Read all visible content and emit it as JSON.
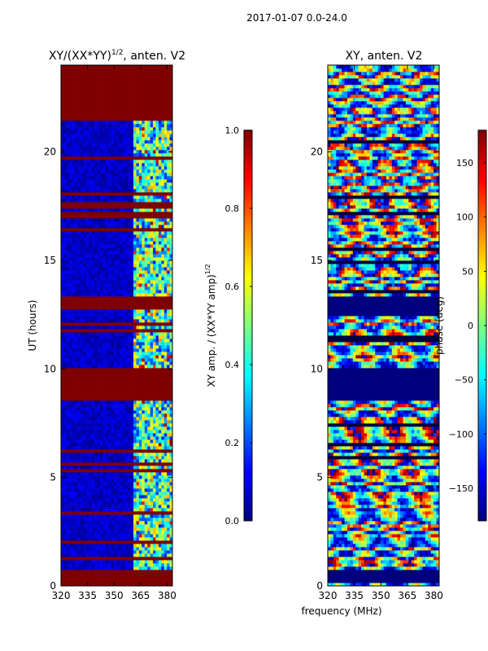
{
  "figure": {
    "suptitle": "2017-01-07 0.0-24.0",
    "xlabel": "frequency (MHz)"
  },
  "colors": {
    "jet_stops": [
      "#00007f",
      "#0000ff",
      "#007fff",
      "#00ffff",
      "#7fff7f",
      "#ffff00",
      "#ff7f00",
      "#ff0000",
      "#7f0000"
    ],
    "flag_color": "#7f0000",
    "low_color": "#00007f"
  },
  "chart_data": [
    {
      "type": "heatmap",
      "title_base": "XY/(XX*YY)",
      "title_exp": "1/2",
      "title_suffix": ", anten. V2",
      "xlabel": "",
      "ylabel": "UT (hours)",
      "xlim": [
        320,
        383
      ],
      "ylim": [
        0,
        24
      ],
      "xticks": [
        320,
        335,
        350,
        365,
        380
      ],
      "yticks": [
        0,
        5,
        10,
        15,
        20
      ],
      "flagged_hour_ranges": [
        [
          0.0,
          0.8
        ],
        [
          8.6,
          10.0
        ],
        [
          12.7,
          13.3
        ],
        [
          17.0,
          17.3
        ],
        [
          21.5,
          24.0
        ]
      ],
      "active_band_mhz": [
        361,
        383
      ],
      "colorbar": {
        "label_base": "XY amp. / (XX*YY amp)",
        "label_exp": "1/2",
        "vmin": 0.0,
        "vmax": 1.0,
        "ticks": [
          "0.0",
          "0.2",
          "0.4",
          "0.6",
          "0.8",
          "1.0"
        ]
      }
    },
    {
      "type": "heatmap",
      "title": "XY, anten. V2",
      "xlabel": "",
      "ylabel": "",
      "xlim": [
        320,
        383
      ],
      "ylim": [
        0,
        24
      ],
      "xticks": [
        320,
        335,
        350,
        365,
        380
      ],
      "yticks": [
        0,
        5,
        10,
        15,
        20
      ],
      "flagged_hour_ranges": [
        [
          0.1,
          0.8
        ],
        [
          8.6,
          10.0
        ],
        [
          12.5,
          13.4
        ]
      ],
      "colorbar": {
        "label": "phase (deg)",
        "vmin": -180,
        "vmax": 180,
        "ticks": [
          "−150",
          "−100",
          "−50",
          "0",
          "50",
          "100",
          "150"
        ]
      }
    }
  ]
}
